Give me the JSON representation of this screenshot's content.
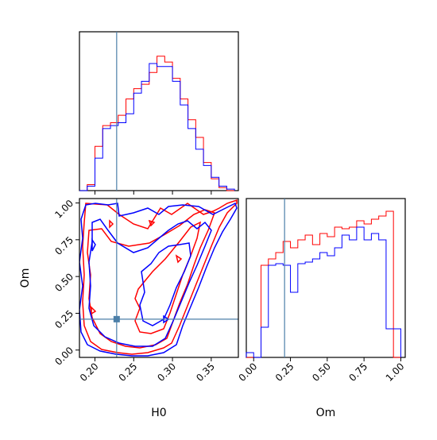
{
  "chart_data": {
    "type": "corner",
    "truth": {
      "H0": 0.228,
      "Om": 0.21,
      "color": "#4c7fa8"
    },
    "series": [
      {
        "color": "#ff0000"
      },
      {
        "color": "#0000ff"
      }
    ],
    "panels": [
      {
        "id": "h0-marginal",
        "type": "histogram",
        "xlim": [
          0.18,
          0.385
        ],
        "x_edges": [
          0.18,
          0.19,
          0.2,
          0.21,
          0.22,
          0.23,
          0.24,
          0.25,
          0.26,
          0.27,
          0.28,
          0.29,
          0.3,
          0.31,
          0.32,
          0.33,
          0.34,
          0.35,
          0.36,
          0.37,
          0.38
        ],
        "red_heights": [
          0.0,
          0.04,
          0.3,
          0.44,
          0.46,
          0.51,
          0.62,
          0.69,
          0.72,
          0.8,
          0.91,
          0.87,
          0.76,
          0.62,
          0.48,
          0.36,
          0.19,
          0.08,
          0.02,
          0.0
        ],
        "blue_heights": [
          0.0,
          0.03,
          0.22,
          0.42,
          0.44,
          0.46,
          0.52,
          0.66,
          0.74,
          0.86,
          0.84,
          0.84,
          0.74,
          0.58,
          0.42,
          0.28,
          0.17,
          0.09,
          0.03,
          0.01
        ],
        "xticks": [
          "0.20",
          "0.25",
          "0.30",
          "0.35"
        ]
      },
      {
        "id": "om-vs-h0",
        "type": "contour",
        "xlim": [
          0.18,
          0.385
        ],
        "ylim": [
          -0.05,
          1.03
        ],
        "xlabel": "H0",
        "ylabel": "Om",
        "xticks": [
          "0.20",
          "0.25",
          "0.30",
          "0.35"
        ],
        "yticks": [
          "0.00",
          "0.25",
          "0.50",
          "0.75",
          "1.00"
        ]
      },
      {
        "id": "om-marginal",
        "type": "histogram",
        "xlim": [
          -0.05,
          1.03
        ],
        "x_edges": [
          -0.05,
          0.0,
          0.05,
          0.1,
          0.15,
          0.2,
          0.25,
          0.3,
          0.35,
          0.4,
          0.45,
          0.5,
          0.55,
          0.6,
          0.65,
          0.7,
          0.75,
          0.8,
          0.85,
          0.9,
          0.95,
          1.0
        ],
        "red_heights": [
          0.0,
          0.0,
          0.58,
          0.62,
          0.66,
          0.73,
          0.69,
          0.74,
          0.77,
          0.71,
          0.78,
          0.76,
          0.82,
          0.81,
          0.82,
          0.86,
          0.84,
          0.87,
          0.89,
          0.92,
          0.0
        ],
        "blue_heights": [
          0.03,
          0.0,
          0.19,
          0.58,
          0.59,
          0.58,
          0.41,
          0.59,
          0.6,
          0.62,
          0.66,
          0.64,
          0.69,
          0.77,
          0.74,
          0.82,
          0.74,
          0.78,
          0.74,
          0.18,
          0.18
        ],
        "xlabel": "Om",
        "xticks": [
          "0.00",
          "0.25",
          "0.50",
          "0.75",
          "1.00"
        ]
      }
    ]
  }
}
